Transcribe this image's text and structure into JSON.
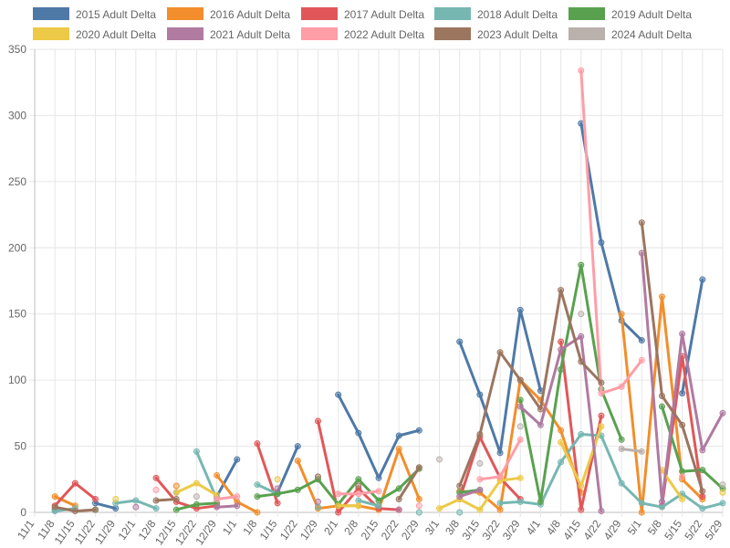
{
  "chart_data": {
    "type": "line",
    "title": "",
    "xlabel": "",
    "ylabel": "",
    "ylim": [
      0,
      350
    ],
    "yticks": [
      0,
      50,
      100,
      150,
      200,
      250,
      300,
      350
    ],
    "grid": true,
    "legend_position": "top",
    "categories": [
      "11/1",
      "11/8",
      "11/15",
      "11/22",
      "11/29",
      "12/1",
      "12/8",
      "12/15",
      "12/22",
      "12/29",
      "1/1",
      "1/8",
      "1/15",
      "1/22",
      "1/29",
      "2/1",
      "2/8",
      "2/15",
      "2/22",
      "2/29",
      "3/1",
      "3/8",
      "3/15",
      "3/22",
      "3/29",
      "4/1",
      "4/8",
      "4/15",
      "4/22",
      "4/29",
      "5/1",
      "5/8",
      "5/15",
      "5/22",
      "5/29"
    ],
    "series": [
      {
        "name": "2015 Adult Delta",
        "color": "#4e79a7",
        "values": [
          null,
          2,
          null,
          7,
          3,
          null,
          null,
          15,
          null,
          12,
          40,
          null,
          15,
          50,
          null,
          89,
          60,
          26,
          58,
          62,
          null,
          129,
          89,
          45,
          153,
          92,
          null,
          294,
          204,
          145,
          130,
          null,
          90,
          176,
          null
        ]
      },
      {
        "name": "2016 Adult Delta",
        "color": "#f28e2b",
        "values": [
          null,
          12,
          5,
          null,
          null,
          null,
          null,
          20,
          null,
          28,
          8,
          0,
          null,
          39,
          3,
          5,
          5,
          2,
          48,
          10,
          null,
          16,
          15,
          2,
          100,
          85,
          62,
          15,
          null,
          150,
          0,
          163,
          25,
          10,
          null
        ]
      },
      {
        "name": "2017 Adult Delta",
        "color": "#e15759",
        "values": [
          null,
          5,
          22,
          10,
          null,
          null,
          26,
          8,
          3,
          5,
          null,
          52,
          7,
          null,
          69,
          0,
          18,
          3,
          2,
          null,
          null,
          10,
          57,
          26,
          10,
          null,
          129,
          2,
          73,
          null,
          null,
          5,
          118,
          12,
          null
        ]
      },
      {
        "name": "2018 Adult Delta",
        "color": "#76b7b2",
        "values": [
          null,
          1,
          3,
          null,
          7,
          9,
          3,
          null,
          46,
          10,
          null,
          21,
          14,
          null,
          4,
          null,
          9,
          5,
          null,
          0,
          null,
          0,
          null,
          7,
          8,
          6,
          38,
          59,
          58,
          22,
          7,
          4,
          14,
          3,
          7
        ]
      },
      {
        "name": "2019 Adult Delta",
        "color": "#59a14f",
        "values": [
          null,
          null,
          null,
          2,
          null,
          null,
          null,
          2,
          6,
          7,
          null,
          12,
          14,
          17,
          25,
          6,
          25,
          9,
          18,
          33,
          null,
          15,
          17,
          null,
          85,
          8,
          108,
          187,
          93,
          55,
          null,
          80,
          31,
          32,
          18
        ]
      },
      {
        "name": "2020 Adult Delta",
        "color": "#edc948",
        "values": [
          null,
          null,
          null,
          null,
          10,
          null,
          null,
          15,
          22,
          13,
          null,
          null,
          25,
          null,
          null,
          5,
          5,
          null,
          null,
          null,
          3,
          10,
          2,
          24,
          26,
          null,
          53,
          20,
          65,
          null,
          null,
          32,
          10,
          null,
          15
        ]
      },
      {
        "name": "2021 Adult Delta",
        "color": "#b07aa1",
        "values": [
          null,
          null,
          null,
          null,
          null,
          4,
          null,
          null,
          null,
          4,
          5,
          null,
          18,
          null,
          8,
          null,
          null,
          null,
          2,
          null,
          null,
          12,
          17,
          null,
          80,
          66,
          123,
          133,
          1,
          null,
          196,
          8,
          135,
          47,
          75
        ]
      },
      {
        "name": "2022 Adult Delta",
        "color": "#ff9da7",
        "values": [
          null,
          null,
          null,
          null,
          null,
          null,
          17,
          null,
          null,
          10,
          12,
          null,
          null,
          null,
          null,
          14,
          14,
          16,
          null,
          5,
          null,
          null,
          25,
          27,
          55,
          null,
          null,
          334,
          90,
          95,
          115,
          null,
          27,
          null,
          null
        ]
      },
      {
        "name": "2023 Adult Delta",
        "color": "#9c755f",
        "values": [
          null,
          4,
          1,
          2,
          null,
          null,
          9,
          10,
          null,
          null,
          null,
          null,
          null,
          null,
          27,
          null,
          20,
          null,
          10,
          34,
          null,
          20,
          59,
          121,
          100,
          78,
          168,
          114,
          98,
          null,
          219,
          88,
          66,
          16,
          null
        ]
      },
      {
        "name": "2024 Adult Delta",
        "color": "#bab0ac",
        "values": [
          null,
          null,
          null,
          null,
          null,
          null,
          null,
          null,
          12,
          null,
          null,
          null,
          null,
          null,
          null,
          null,
          null,
          null,
          null,
          null,
          40,
          null,
          37,
          null,
          65,
          null,
          null,
          150,
          null,
          48,
          46,
          null,
          null,
          null,
          21
        ]
      }
    ]
  }
}
